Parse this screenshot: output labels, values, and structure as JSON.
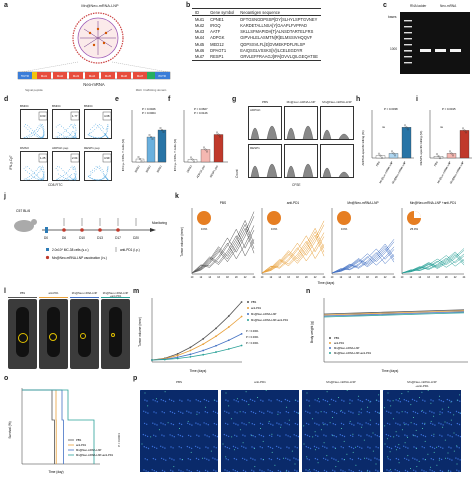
{
  "panel_labels": [
    "a",
    "b",
    "c",
    "d",
    "e",
    "f",
    "g",
    "h",
    "i",
    "j",
    "k",
    "l",
    "m",
    "n",
    "o",
    "p"
  ],
  "panel_a": {
    "construct_title": "Mn@Neo-mRNA-LNP",
    "segments": [
      "5'UTR",
      "Mut1",
      "Mut2",
      "Mut3",
      "Mut4",
      "Mut5",
      "Mut6",
      "Mut7",
      "3'UTR"
    ],
    "caption": "Neo-mRNA",
    "subcaption_left": "Signal peptide",
    "subcaption_right": "MHC I trafficking domain"
  },
  "panel_b": {
    "headers": [
      "ID",
      "Gene symbol",
      "Neoantigen sequence"
    ],
    "rows": [
      {
        "id": "Mut1",
        "gene": "CPNE1",
        "seq": "DFTGSNGDPSSP[DY]SLHYLSPTGVNEY"
      },
      {
        "id": "Mut2",
        "gene": "IRGQ",
        "seq": "KARDETALLNSA[Y]GAAPLFVPPAD"
      },
      {
        "id": "Mut3",
        "gene": "AATF",
        "seq": "SKLLSFMAPIDH[T]ALNSDTARTELFRS"
      },
      {
        "id": "Mut4",
        "gene": "ADPGK",
        "seq": "GIPVHLELASMTN[R]ELMSSIVHQQVF"
      },
      {
        "id": "Mut5",
        "gene": "MED12",
        "seq": "QDPSSVLFL[E]DVMEKPDFLRLSP"
      },
      {
        "id": "Mut6",
        "gene": "DPAGT1",
        "seq": "EAIQSGLVSSKS[V]ILCELEGDYR"
      },
      {
        "id": "Mut7",
        "gene": "RESP1",
        "seq": "GRVLEFFRAAGJ[IPA]DVVLQILGEQATSE"
      }
    ]
  },
  "panel_c": {
    "lanes": [
      "RNA ladder",
      "Neo-mRNA"
    ],
    "y_label": "bases",
    "marker": "1000"
  },
  "panel_d": {
    "headers": [
      "BMDC",
      "BMDC",
      "BMDC"
    ],
    "sub_labels": [
      "DMSO",
      "ADPGK pep",
      "RESP1 pep"
    ],
    "values_top": [
      "0.63",
      "1.77",
      "4.08"
    ],
    "values_bottom": [
      "1.25",
      "2.04",
      "4.99"
    ],
    "x_axis": "CD8-FITC",
    "y_axis": "IFN-γ-Cy7"
  },
  "panel_e": {
    "y_label": "IFN-γ+ CD8+ T cells (%)",
    "stats": [
      "P = 0.0026",
      "P = 0.0004"
    ],
    "categories": [
      "BMDC",
      "BMDC",
      "BMDC"
    ]
  },
  "panel_f": {
    "y_label": "IFN-γ+ CD8+ T cells (%)",
    "stats": [
      "P = 0.0607",
      "P = 0.0126"
    ],
    "categories": [
      "DMSO",
      "ADPGK pep",
      "RESP1 pep"
    ]
  },
  "panel_g": {
    "columns": [
      "PBS",
      "Mn@Luc-mRNA-LNP",
      "Mn@Neo-mRNA-LNP"
    ],
    "rows": [
      "ADPGK",
      "RESP1"
    ],
    "x_axis": "CFSE",
    "y_axis": "Count"
  },
  "panel_h": {
    "y_label": "ADPGK-specific killing (%)",
    "stats": [
      "P = 0.0038",
      "ns"
    ],
    "categories": [
      "PBS",
      "Mn@Luc-mRNA-LNP",
      "Mn@Neo-mRNA-LNP"
    ]
  },
  "panel_i": {
    "y_label": "RESP1-specific killing (%)",
    "stats": [
      "P = 0.0015",
      "ns"
    ],
    "categories": [
      "PBS",
      "Mn@Luc-mRNA-LNP",
      "Mn@Neo-mRNA-LNP"
    ]
  },
  "panel_j": {
    "mouse": "C57 BL/6",
    "days": [
      "D0",
      "D6",
      "D10",
      "D13",
      "D17",
      "D20"
    ],
    "monitor": "Monitoring",
    "legend": [
      "2.0x10⁵ MC-38 cells (s.c.)",
      "Mn@Neo-mRNA-LNP vaccination (i.v.)",
      "anti-PD1 (i.p.)"
    ]
  },
  "panel_k": {
    "titles": [
      "PBS",
      "anti-PD1",
      "Mn@Neo-mRNA-LNP",
      "Mn@Neo-mRNA-LNP\n+anti-PD1"
    ],
    "pcts": [
      "0.0%",
      "0.0%",
      "0.0%",
      "25.0%"
    ],
    "y_label": "Tumor volume (mm³)",
    "x_label": "Time (days)",
    "x_ticks": [
      "10",
      "12",
      "14",
      "16",
      "18",
      "20",
      "22",
      "24"
    ]
  },
  "panel_l": {
    "labels": [
      "PBS",
      "anti-PD1",
      "Mn@Neo-mRNA-LNP",
      "Mn@Neo-mRNA-LNP +anti-PD1"
    ]
  },
  "panel_m": {
    "y_label": "Tumor volume (mm³)",
    "x_label": "Time (days)",
    "legend": [
      "PBS",
      "anti-PD1",
      "Mn@Neo-mRNA-LNP",
      "Mn@Neo-mRNA-LNP+anti-PD1"
    ],
    "stats": [
      "P < 0.0001",
      "P = 0.0001",
      "P < 0.0001"
    ]
  },
  "panel_n": {
    "y_label": "Body weight (g)",
    "x_label": "Time (days)",
    "legend": [
      "PBS",
      "anti-PD1",
      "Mn@Neo-mRNA-LNP",
      "Mn@Neo-mRNA-LNP+anti-PD1"
    ]
  },
  "panel_o": {
    "y_label": "Survival (%)",
    "x_label": "Time (day)",
    "legend": [
      "PBS",
      "anti-PD1",
      "Mn@Neo-mRNA-LNP",
      "Mn@Neo-mRNA-LNP+anti-PD1"
    ],
    "stat": "P < 0.0001"
  },
  "panel_p": {
    "titles": [
      "PBS",
      "anti-PD1",
      "Mn@Neo-mRNA-LNP",
      "Mn@Neo-mRNA-LNP\n+anti-PD1"
    ],
    "side": "CD8 DAPI"
  },
  "colors": {
    "pbs": "#555555",
    "antipd1": "#e8a03a",
    "neo": "#4472c4",
    "combo": "#2aa198",
    "accent_red": "#c0392b",
    "orange_pie": "#e67e22",
    "micro_bg": "#0a2a6a"
  }
}
